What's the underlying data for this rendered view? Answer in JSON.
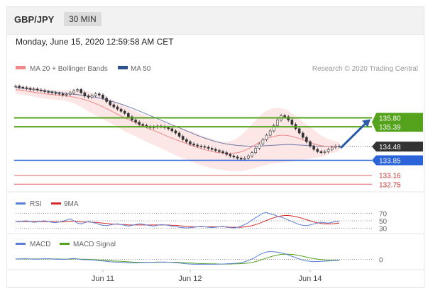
{
  "header": {
    "pair": "GBP/JPY",
    "timeframe": "30 MIN"
  },
  "datetime": "Monday, June 15, 2020 12:59:58 AM CET",
  "legend": {
    "ma20": "MA 20 + Bollinger Bands",
    "ma50": "MA 50",
    "credit": "Research © 2020 Trading Central"
  },
  "colors": {
    "ma20": "#f08a8a",
    "ma50": "#2f4f8f",
    "band": "#fde0e0",
    "resistance": "#55a31d",
    "support": "#2b63d9",
    "target": "#e06060",
    "price": "#333333",
    "rsi": "#5a7fd6",
    "rsi_ma": "#d42a2a",
    "macd": "#5a7fd6",
    "macd_signal": "#55a31d"
  },
  "chart_data": [
    {
      "type": "line",
      "panel": "price",
      "levels": {
        "resistance": [
          135.8,
          135.39
        ],
        "current": 134.48,
        "support": 133.85,
        "targets": [
          133.16,
          132.75
        ]
      },
      "level_labels": [
        "135.80",
        "135.39",
        "134.48",
        "133.85",
        "133.16",
        "132.75"
      ],
      "close": [
        137.25,
        137.2,
        137.18,
        137.15,
        137.1,
        137.12,
        137.08,
        137.05,
        137.0,
        136.98,
        136.95,
        136.92,
        136.9,
        136.85,
        136.88,
        136.95,
        137.05,
        137.1,
        136.95,
        136.8,
        136.75,
        136.82,
        136.9,
        136.85,
        136.7,
        136.55,
        136.4,
        136.3,
        136.2,
        136.1,
        136.0,
        135.85,
        135.7,
        135.6,
        135.5,
        135.45,
        135.4,
        135.35,
        135.38,
        135.42,
        135.4,
        135.35,
        135.3,
        135.2,
        135.1,
        134.95,
        134.8,
        134.7,
        134.6,
        134.55,
        134.5,
        134.48,
        134.45,
        134.4,
        134.35,
        134.3,
        134.25,
        134.2,
        134.12,
        134.05,
        134.0,
        133.95,
        133.9,
        133.95,
        134.05,
        134.2,
        134.4,
        134.6,
        134.8,
        135.0,
        135.2,
        135.45,
        135.7,
        135.9,
        135.85,
        135.7,
        135.5,
        135.3,
        135.1,
        134.9,
        134.7,
        134.5,
        134.35,
        134.25,
        134.2,
        134.25,
        134.35,
        134.45,
        134.5,
        134.48
      ],
      "ma20": [
        137.1,
        137.08,
        137.06,
        137.03,
        137.0,
        136.98,
        136.95,
        136.93,
        136.9,
        136.88,
        136.86,
        136.85,
        136.84,
        136.82,
        136.8,
        136.78,
        136.75,
        136.72,
        136.68,
        136.63,
        136.58,
        136.52,
        136.45,
        136.38,
        136.3,
        136.22,
        136.14,
        136.05,
        135.96,
        135.88,
        135.8,
        135.72,
        135.65,
        135.58,
        135.5,
        135.42,
        135.35,
        135.28,
        135.22,
        135.15,
        135.08,
        135.0,
        134.93,
        134.86,
        134.8,
        134.74,
        134.68,
        134.62,
        134.56,
        134.5,
        134.44,
        134.39,
        134.34,
        134.3,
        134.26,
        134.22,
        134.2,
        134.18,
        134.17,
        134.17,
        134.18,
        134.2,
        134.24,
        134.3,
        134.38,
        134.47,
        134.57,
        134.67,
        134.76,
        134.84,
        134.9,
        134.95,
        134.98,
        135.0,
        135.0,
        134.98,
        134.95,
        134.9,
        134.85,
        134.79,
        134.73,
        134.67,
        134.61,
        134.56,
        134.52,
        134.5,
        134.49,
        134.48,
        134.48,
        134.48
      ],
      "ma50": [
        137.2,
        137.18,
        137.16,
        137.14,
        137.12,
        137.1,
        137.08,
        137.06,
        137.04,
        137.02,
        137.0,
        136.98,
        136.96,
        136.94,
        136.92,
        136.9,
        136.88,
        136.86,
        136.84,
        136.82,
        136.8,
        136.77,
        136.74,
        136.71,
        136.67,
        136.63,
        136.58,
        136.53,
        136.48,
        136.43,
        136.37,
        136.31,
        136.25,
        136.18,
        136.11,
        136.04,
        135.97,
        135.9,
        135.83,
        135.76,
        135.69,
        135.62,
        135.55,
        135.48,
        135.41,
        135.34,
        135.27,
        135.2,
        135.13,
        135.06,
        134.99,
        134.93,
        134.87,
        134.81,
        134.76,
        134.71,
        134.67,
        134.63,
        134.6,
        134.57,
        134.55,
        134.53,
        134.52,
        134.51,
        134.5,
        134.5,
        134.5,
        134.5,
        134.51,
        134.52,
        134.53,
        134.54,
        134.55,
        134.56,
        134.57,
        134.57,
        134.57,
        134.56,
        134.55,
        134.54,
        134.53,
        134.52,
        134.51,
        134.5,
        134.49,
        134.49,
        134.48,
        134.48,
        134.48,
        134.48
      ],
      "bb_upper": [
        137.3,
        137.29,
        137.27,
        137.25,
        137.22,
        137.2,
        137.17,
        137.15,
        137.12,
        137.1,
        137.08,
        137.07,
        137.06,
        137.05,
        137.05,
        137.06,
        137.08,
        137.1,
        137.08,
        137.05,
        137.0,
        136.95,
        136.9,
        136.85,
        136.8,
        136.74,
        136.68,
        136.6,
        136.52,
        136.44,
        136.35,
        136.26,
        136.18,
        136.1,
        136.02,
        135.95,
        135.88,
        135.82,
        135.76,
        135.7,
        135.64,
        135.58,
        135.52,
        135.46,
        135.4,
        135.35,
        135.3,
        135.25,
        135.2,
        135.14,
        135.08,
        135.0,
        134.94,
        134.88,
        134.82,
        134.76,
        134.72,
        134.7,
        134.7,
        134.72,
        134.78,
        134.88,
        135.0,
        135.15,
        135.32,
        135.5,
        135.68,
        135.85,
        136.0,
        136.12,
        136.2,
        136.24,
        136.25,
        136.24,
        136.2,
        136.12,
        136.0,
        135.88,
        135.75,
        135.62,
        135.5,
        135.38,
        135.25,
        135.12,
        135.0,
        134.9,
        134.82,
        134.76,
        134.72,
        134.7
      ],
      "bb_lower": [
        136.9,
        136.88,
        136.86,
        136.84,
        136.8,
        136.77,
        136.74,
        136.71,
        136.68,
        136.66,
        136.64,
        136.63,
        136.62,
        136.6,
        136.57,
        136.52,
        136.46,
        136.38,
        136.3,
        136.2,
        136.1,
        136.0,
        135.92,
        135.83,
        135.74,
        135.65,
        135.56,
        135.46,
        135.36,
        135.27,
        135.18,
        135.1,
        135.02,
        134.94,
        134.86,
        134.78,
        134.7,
        134.62,
        134.55,
        134.48,
        134.4,
        134.32,
        134.24,
        134.16,
        134.08,
        134.0,
        133.93,
        133.87,
        133.8,
        133.74,
        133.68,
        133.62,
        133.57,
        133.52,
        133.48,
        133.45,
        133.42,
        133.4,
        133.38,
        133.36,
        133.35,
        133.35,
        133.36,
        133.38,
        133.42,
        133.46,
        133.5,
        133.55,
        133.6,
        133.64,
        133.68,
        133.7,
        133.72,
        133.74,
        133.76,
        133.78,
        133.8,
        133.82,
        133.85,
        133.88,
        133.9,
        133.92,
        133.95,
        133.98,
        134.0,
        134.05,
        134.12,
        134.18,
        134.22,
        134.26
      ],
      "x_ticks": [
        "Jun 11",
        "Jun 12",
        "Jun 14"
      ],
      "ylim": [
        132.5,
        137.7
      ]
    },
    {
      "type": "line",
      "panel": "rsi",
      "series": [
        {
          "name": "RSI",
          "values": [
            48,
            47,
            49,
            50,
            48,
            46,
            47,
            49,
            50,
            48,
            46,
            45,
            47,
            49,
            52,
            55,
            50,
            44,
            42,
            45,
            48,
            46,
            44,
            40,
            38,
            37,
            39,
            41,
            42,
            40,
            38,
            36,
            38,
            40,
            42,
            41,
            39,
            37,
            36,
            38,
            40,
            39,
            38,
            36,
            35,
            33,
            32,
            31,
            32,
            33,
            34,
            35,
            34,
            33,
            32,
            33,
            34,
            35,
            33,
            32,
            31,
            33,
            36,
            40,
            45,
            52,
            58,
            64,
            70,
            72,
            68,
            66,
            62,
            60,
            56,
            52,
            48,
            44,
            40,
            38,
            37,
            39,
            42,
            44,
            46,
            45,
            44,
            46,
            48,
            47
          ]
        },
        {
          "name": "9MA",
          "values": [
            48,
            48,
            48,
            48,
            48,
            48,
            48,
            48,
            48,
            48,
            48,
            47,
            47,
            47,
            48,
            49,
            49,
            48,
            47,
            47,
            47,
            46,
            46,
            45,
            44,
            43,
            42,
            41,
            41,
            40,
            40,
            39,
            39,
            39,
            39,
            39,
            39,
            39,
            39,
            39,
            39,
            39,
            39,
            38,
            38,
            37,
            36,
            35,
            35,
            34,
            34,
            34,
            34,
            34,
            34,
            34,
            34,
            34,
            34,
            33,
            33,
            33,
            33,
            34,
            35,
            37,
            40,
            43,
            47,
            51,
            55,
            58,
            61,
            63,
            64,
            64,
            63,
            61,
            59,
            56,
            53,
            50,
            47,
            45,
            43,
            42,
            42,
            42,
            43,
            44
          ]
        }
      ],
      "levels": [
        70,
        50,
        30
      ],
      "ylim": [
        20,
        80
      ]
    },
    {
      "type": "line",
      "panel": "macd",
      "series": [
        {
          "name": "MACD",
          "values": [
            0.02,
            0.02,
            0.03,
            0.03,
            0.02,
            0.01,
            0.01,
            0.02,
            0.03,
            0.03,
            0.02,
            0.01,
            0.0,
            0.0,
            0.01,
            0.03,
            0.04,
            0.02,
            -0.01,
            -0.02,
            -0.02,
            -0.03,
            -0.04,
            -0.06,
            -0.08,
            -0.1,
            -0.12,
            -0.13,
            -0.14,
            -0.15,
            -0.16,
            -0.17,
            -0.17,
            -0.17,
            -0.16,
            -0.16,
            -0.15,
            -0.14,
            -0.14,
            -0.13,
            -0.13,
            -0.13,
            -0.14,
            -0.15,
            -0.16,
            -0.18,
            -0.2,
            -0.22,
            -0.23,
            -0.24,
            -0.24,
            -0.24,
            -0.24,
            -0.24,
            -0.24,
            -0.24,
            -0.23,
            -0.23,
            -0.22,
            -0.21,
            -0.2,
            -0.19,
            -0.16,
            -0.12,
            -0.06,
            0.02,
            0.12,
            0.22,
            0.3,
            0.36,
            0.38,
            0.37,
            0.35,
            0.32,
            0.28,
            0.22,
            0.15,
            0.08,
            0.02,
            -0.04,
            -0.08,
            -0.1,
            -0.11,
            -0.11,
            -0.1,
            -0.09,
            -0.08,
            -0.07,
            -0.06,
            -0.06
          ]
        },
        {
          "name": "MACD Signal",
          "values": [
            0.02,
            0.02,
            0.02,
            0.02,
            0.02,
            0.02,
            0.02,
            0.02,
            0.02,
            0.02,
            0.02,
            0.02,
            0.02,
            0.01,
            0.01,
            0.01,
            0.02,
            0.02,
            0.01,
            0.01,
            0.0,
            -0.01,
            -0.02,
            -0.03,
            -0.04,
            -0.05,
            -0.07,
            -0.08,
            -0.09,
            -0.1,
            -0.11,
            -0.12,
            -0.13,
            -0.14,
            -0.14,
            -0.15,
            -0.15,
            -0.15,
            -0.15,
            -0.15,
            -0.14,
            -0.14,
            -0.14,
            -0.14,
            -0.14,
            -0.15,
            -0.16,
            -0.17,
            -0.18,
            -0.19,
            -0.2,
            -0.21,
            -0.21,
            -0.22,
            -0.22,
            -0.22,
            -0.23,
            -0.23,
            -0.23,
            -0.23,
            -0.22,
            -0.22,
            -0.21,
            -0.2,
            -0.18,
            -0.15,
            -0.11,
            -0.06,
            0.0,
            0.06,
            0.12,
            0.17,
            0.21,
            0.24,
            0.25,
            0.25,
            0.24,
            0.22,
            0.19,
            0.15,
            0.11,
            0.07,
            0.04,
            0.01,
            -0.01,
            -0.03,
            -0.04,
            -0.05,
            -0.05,
            -0.05
          ]
        }
      ],
      "levels": [
        0
      ],
      "ylim": [
        -0.4,
        0.5
      ]
    }
  ]
}
